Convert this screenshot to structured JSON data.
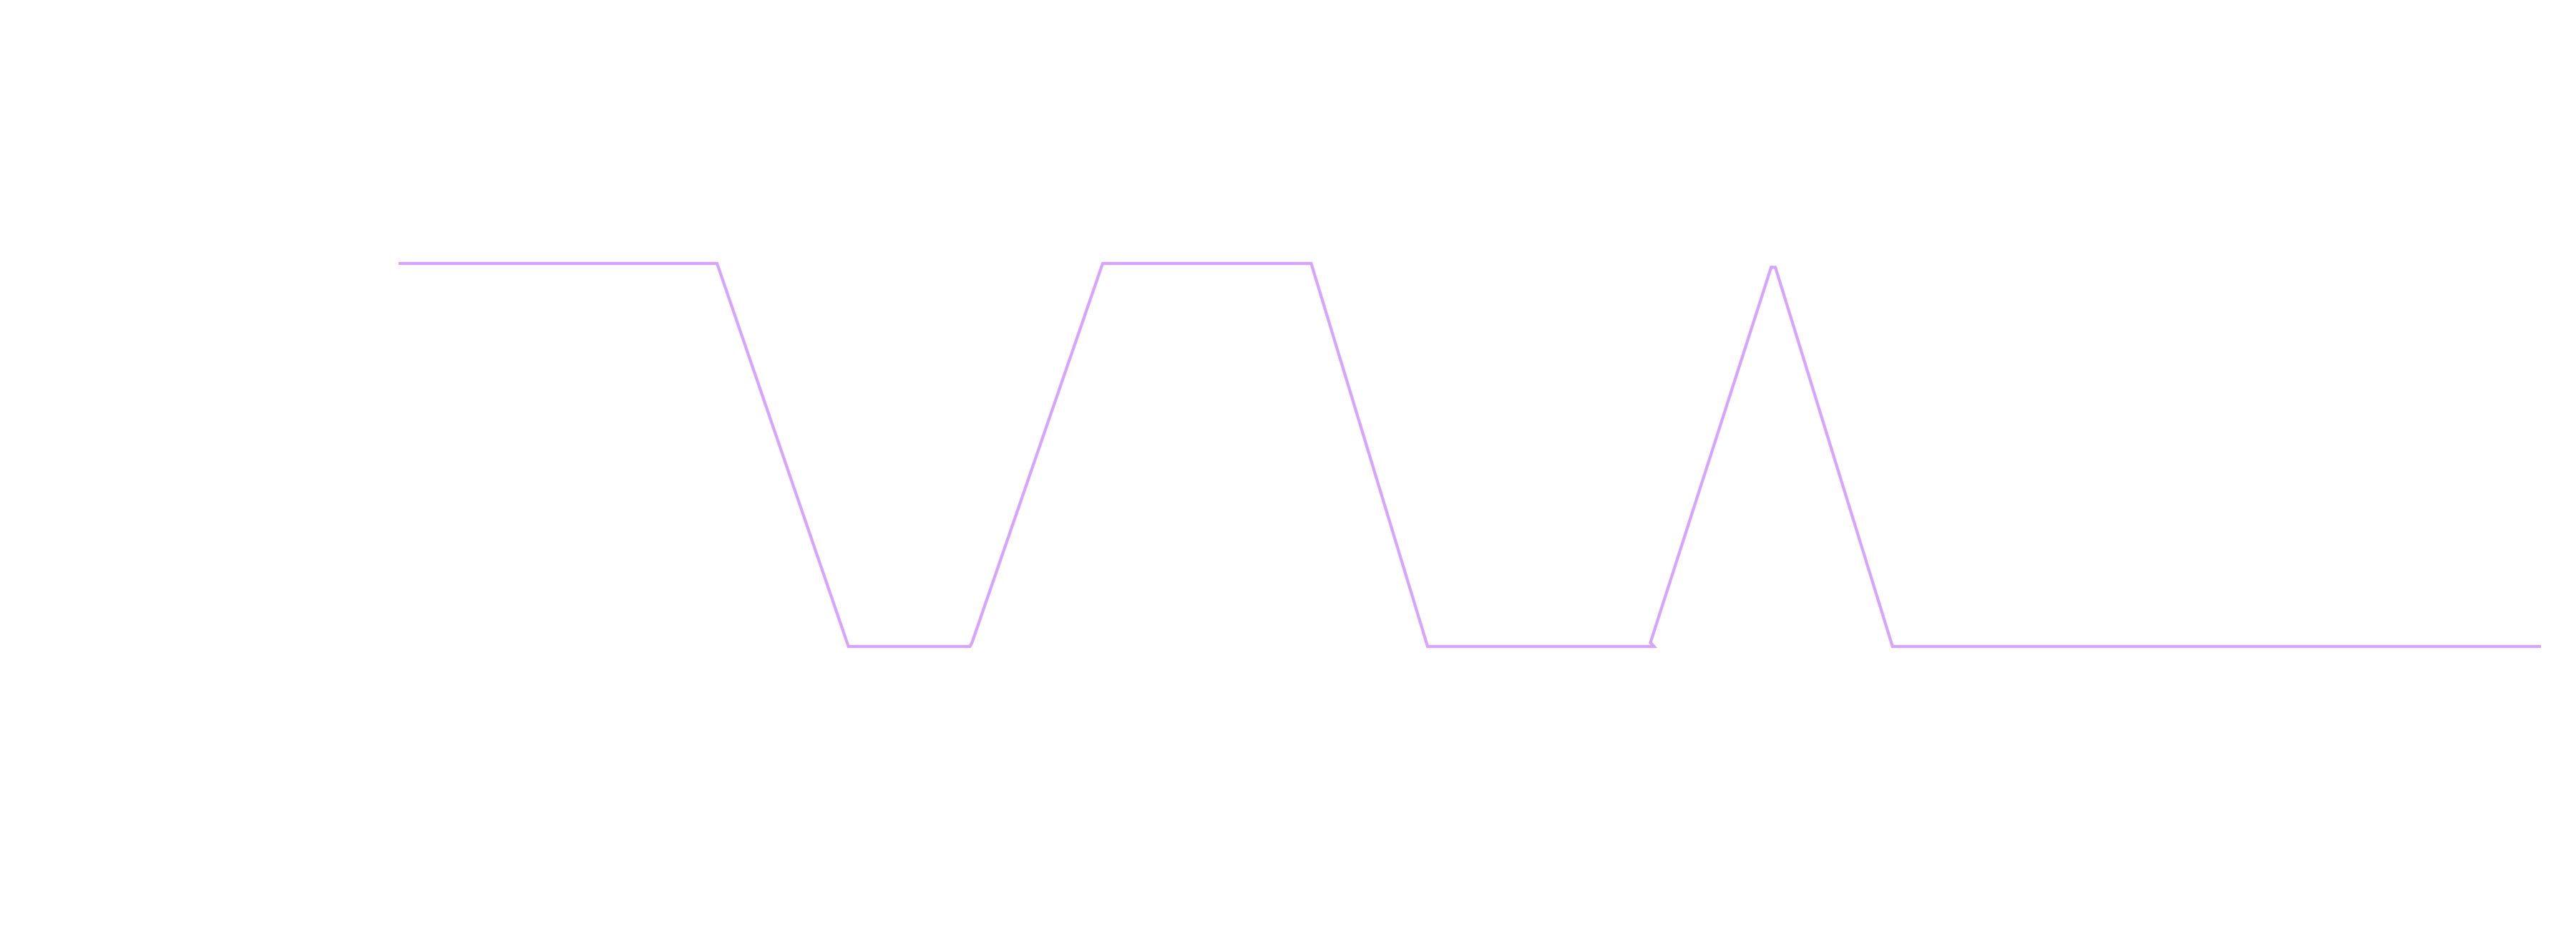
{
  "chart_data": {
    "type": "line",
    "title": "",
    "xlabel": "",
    "ylabel": "",
    "axes_visible": false,
    "grid": false,
    "legend": "none",
    "x_range": [
      0,
      3000
    ],
    "y_range": [
      0,
      1
    ],
    "series": [
      {
        "color": "#d8a2ff",
        "style": "trapezoidal waveform",
        "points": [
          {
            "x": 0,
            "y": 1
          },
          {
            "x": 441,
            "y": 1
          },
          {
            "x": 446,
            "y": 1
          },
          {
            "x": 630,
            "y": 0
          },
          {
            "x": 800,
            "y": 0
          },
          {
            "x": 803,
            "y": 0.01
          },
          {
            "x": 986,
            "y": 1
          },
          {
            "x": 1274,
            "y": 1
          },
          {
            "x": 1278,
            "y": 1
          },
          {
            "x": 1441,
            "y": 0
          },
          {
            "x": 1758,
            "y": 0
          },
          {
            "x": 1753,
            "y": 0.01
          },
          {
            "x": 1922,
            "y": 0.99
          },
          {
            "x": 1928,
            "y": 0.99
          },
          {
            "x": 2092,
            "y": 0
          },
          {
            "x": 3000,
            "y": 0
          }
        ]
      }
    ]
  }
}
